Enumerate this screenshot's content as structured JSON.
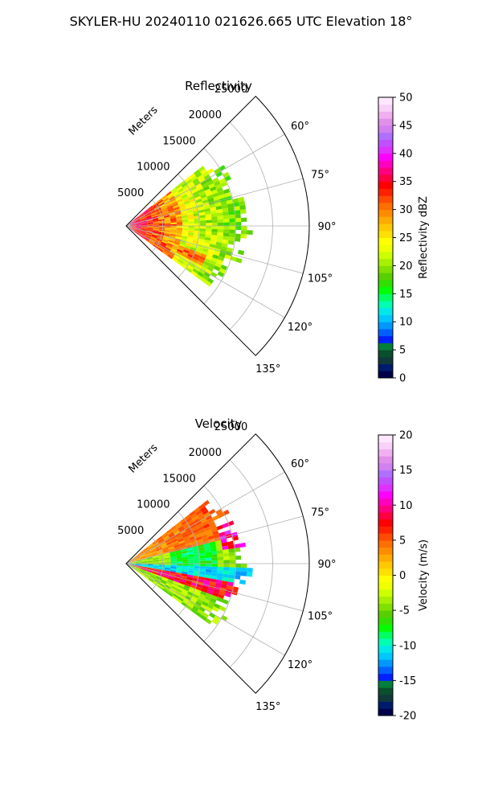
{
  "suptitle": "SKYLER-HU  20240110  021626.665 UTC Elevation 18°",
  "colors": {
    "grid": "#b0b0b0",
    "reflectivity_scale": [
      "#00004a",
      "#001a6e",
      "#103a3a",
      "#0a4f2e",
      "#00803a",
      "#0020ff",
      "#0060ff",
      "#0098ff",
      "#00c8ff",
      "#00e8e8",
      "#00ffb0",
      "#00ff60",
      "#00ff00",
      "#30e000",
      "#58d000",
      "#80e000",
      "#a8f000",
      "#ccff00",
      "#eeff00",
      "#ffff00",
      "#ffe000",
      "#ffc800",
      "#ffaa00",
      "#ff8c00",
      "#ff6e00",
      "#ff4a00",
      "#ff2000",
      "#ff0000",
      "#ff0040",
      "#ff0080",
      "#ff00c0",
      "#ff00ff",
      "#e030ff",
      "#c050ff",
      "#b070ff",
      "#d080f0",
      "#e090e8",
      "#f0b0f0",
      "#f8d0f8",
      "#ffe8ff"
    ],
    "velocity_scale": [
      "#00004a",
      "#001a6e",
      "#103a3a",
      "#0a4f2e",
      "#00803a",
      "#0020ff",
      "#0060ff",
      "#0098ff",
      "#00c8ff",
      "#00e8e8",
      "#00ffb0",
      "#00ff60",
      "#00ff00",
      "#30e000",
      "#58d000",
      "#80e000",
      "#a8f000",
      "#ccff00",
      "#eeff00",
      "#ffff00",
      "#ffe000",
      "#ffc800",
      "#ffaa00",
      "#ff8c00",
      "#ff6e00",
      "#ff4a00",
      "#ff2000",
      "#ff0000",
      "#ff0040",
      "#ff0080",
      "#ff00c0",
      "#ff00ff",
      "#e030ff",
      "#c050ff",
      "#b070ff",
      "#d080f0",
      "#e090e8",
      "#f0b0f0",
      "#f8d0f8",
      "#ffe8ff"
    ]
  },
  "chart_data": [
    {
      "type": "heatmap",
      "projection": "polar",
      "title": "Reflectivity",
      "radial_label": "Meters",
      "radial_ticks": [
        "5000",
        "10000",
        "15000",
        "20000",
        "25000"
      ],
      "radial_values": [
        5000,
        10000,
        15000,
        20000,
        25000
      ],
      "rlim": [
        0,
        25000
      ],
      "angle_ticks": [
        "60°",
        "75°",
        "90°",
        "105°",
        "120°",
        "135°"
      ],
      "angle_values": [
        60,
        75,
        90,
        105,
        120,
        135
      ],
      "theta_range_deg": [
        45,
        135
      ],
      "grid": true,
      "colorbar": {
        "label": "Reflectivity dBZ",
        "range": [
          0,
          50
        ],
        "ticks": [
          "0",
          "5",
          "10",
          "15",
          "20",
          "25",
          "30",
          "35",
          "40",
          "45",
          "50"
        ],
        "tick_values": [
          0,
          5,
          10,
          15,
          20,
          25,
          30,
          35,
          40,
          45,
          50
        ]
      },
      "data_extent": {
        "range_m": [
          0,
          17500
        ],
        "azimuth_deg": [
          52,
          125
        ],
        "approx_values_dbz": [
          15,
          40
        ]
      }
    },
    {
      "type": "heatmap",
      "projection": "polar",
      "title": "Velocity",
      "radial_label": "Meters",
      "radial_ticks": [
        "5000",
        "10000",
        "15000",
        "20000",
        "25000"
      ],
      "radial_values": [
        5000,
        10000,
        15000,
        20000,
        25000
      ],
      "rlim": [
        0,
        25000
      ],
      "angle_ticks": [
        "60°",
        "75°",
        "90°",
        "105°",
        "120°",
        "135°"
      ],
      "angle_values": [
        60,
        75,
        90,
        105,
        120,
        135
      ],
      "theta_range_deg": [
        45,
        135
      ],
      "grid": true,
      "colorbar": {
        "label": "Velocity (m/s)",
        "range": [
          -20,
          20
        ],
        "ticks": [
          "-20",
          "-15",
          "-10",
          "-5",
          "0",
          "5",
          "10",
          "15",
          "20"
        ],
        "tick_values": [
          -20,
          -15,
          -10,
          -5,
          0,
          5,
          10,
          15,
          20
        ]
      },
      "data_extent": {
        "range_m": [
          0,
          17500
        ],
        "azimuth_deg": [
          52,
          125
        ],
        "approx_values_ms": [
          -12,
          15
        ]
      }
    }
  ]
}
